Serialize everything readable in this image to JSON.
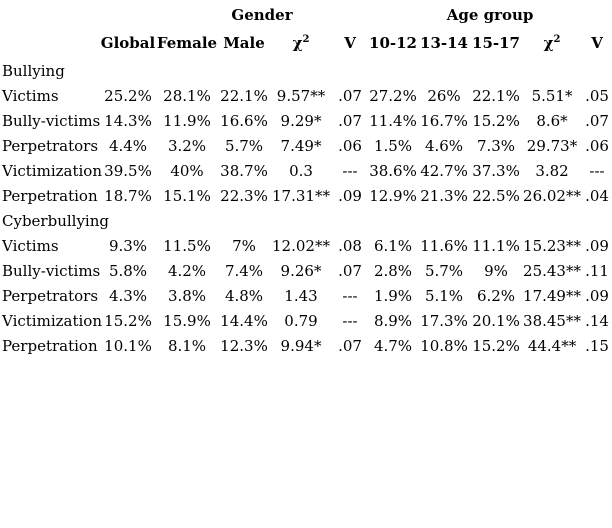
{
  "meta": {
    "background_color": "#ffffff",
    "text_color": "#000000",
    "description": "Prevalence table of bullying and cyberbullying by gender and age group with chi-square and Cramer's V statistics"
  },
  "table": {
    "group_headers": [
      {
        "label": "",
        "span": 2
      },
      {
        "label": "Gender",
        "span": 4
      },
      {
        "label": "Age group",
        "span": 5
      }
    ],
    "columns": [
      {
        "label": ""
      },
      {
        "label": "Global"
      },
      {
        "label": "Female"
      },
      {
        "label": "Male"
      },
      {
        "base": "χ",
        "sup": "2"
      },
      {
        "label": "V"
      },
      {
        "label": "10-12"
      },
      {
        "label": "13-14"
      },
      {
        "label": "15-17"
      },
      {
        "base": "χ",
        "sup": "2"
      },
      {
        "label": "V"
      }
    ],
    "rows": [
      {
        "type": "section",
        "cells": [
          "Bullying",
          "",
          "",
          "",
          "",
          "",
          "",
          "",
          "",
          "",
          ""
        ]
      },
      {
        "type": "data",
        "cells": [
          "Victims",
          "25.2%",
          "28.1%",
          "22.1%",
          "9.57**",
          ".07",
          "27.2%",
          "26%",
          "22.1%",
          "5.51*",
          ".05"
        ]
      },
      {
        "type": "data",
        "cells": [
          "Bully-victims",
          "14.3%",
          "11.9%",
          "16.6%",
          "9.29*",
          ".07",
          "11.4%",
          "16.7%",
          "15.2%",
          "8.6*",
          ".07"
        ]
      },
      {
        "type": "data",
        "cells": [
          "Perpetrators",
          "4.4%",
          "3.2%",
          "5.7%",
          "7.49*",
          ".06",
          "1.5%",
          "4.6%",
          "7.3%",
          "29.73*",
          ".06"
        ]
      },
      {
        "type": "data",
        "cells": [
          "Victimization",
          "39.5%",
          "40%",
          "38.7%",
          "0.3",
          "---",
          "38.6%",
          "42.7%",
          "37.3%",
          "3.82",
          "---"
        ]
      },
      {
        "type": "data",
        "cells": [
          "Perpetration",
          "18.7%",
          "15.1%",
          "22.3%",
          "17.31**",
          ".09",
          "12.9%",
          "21.3%",
          "22.5%",
          "26.02**",
          ".04"
        ]
      },
      {
        "type": "section",
        "cells": [
          "Cyberbullying",
          "",
          "",
          "",
          "",
          "",
          "",
          "",
          "",
          "",
          ""
        ]
      },
      {
        "type": "data",
        "cells": [
          "Victims",
          "9.3%",
          "11.5%",
          "7%",
          "12.02**",
          ".08",
          "6.1%",
          "11.6%",
          "11.1%",
          "15.23**",
          ".09"
        ]
      },
      {
        "type": "data",
        "cells": [
          "Bully-victims",
          "5.8%",
          "4.2%",
          "7.4%",
          "9.26*",
          ".07",
          "2.8%",
          "5.7%",
          "9%",
          "25.43**",
          ".11"
        ]
      },
      {
        "type": "data",
        "cells": [
          "Perpetrators",
          "4.3%",
          "3.8%",
          "4.8%",
          "1.43",
          "---",
          "1.9%",
          "5.1%",
          "6.2%",
          "17.49**",
          ".09"
        ]
      },
      {
        "type": "data",
        "cells": [
          "Victimization",
          "15.2%",
          "15.9%",
          "14.4%",
          "0.79",
          "---",
          "8.9%",
          "17.3%",
          "20.1%",
          "38.45**",
          ".14"
        ]
      },
      {
        "type": "data",
        "cells": [
          "Perpetration",
          "10.1%",
          "8.1%",
          "12.3%",
          "9.94*",
          ".07",
          "4.7%",
          "10.8%",
          "15.2%",
          "44.4**",
          ".15"
        ]
      }
    ]
  }
}
